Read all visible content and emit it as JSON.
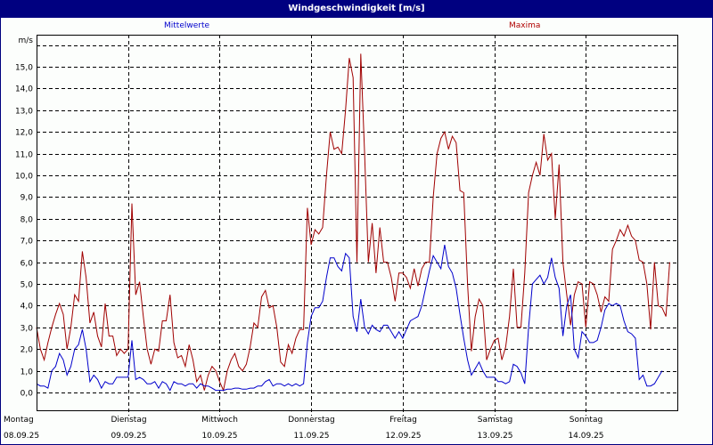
{
  "title": "Windgeschwindigkeit [m/s]",
  "legend": {
    "mean_label": "Mittelwerte",
    "max_label": "Maxima",
    "mean_color": "#0000cc",
    "max_color": "#a00000"
  },
  "colors": {
    "titlebar": "#000080",
    "background": "#fcfefc",
    "grid": "#000000"
  },
  "chart_data": {
    "type": "line",
    "title": "Windgeschwindigkeit [m/s]",
    "xlabel": "",
    "ylabel": "m/s",
    "ylim": [
      -0.8,
      15.9
    ],
    "yticks": [
      "0,0",
      "1,0",
      "2,0",
      "3,0",
      "4,0",
      "5,0",
      "6,0",
      "7,0",
      "8,0",
      "9,0",
      "10,0",
      "11,0",
      "12,0",
      "13,0",
      "14,0",
      "15,0"
    ],
    "y_unit_label": "m/s",
    "grid": true,
    "legend_position": "top",
    "categories": [
      {
        "day": "Montag",
        "date": "08.09.25"
      },
      {
        "day": "Dienstag",
        "date": "09.09.25"
      },
      {
        "day": "Mittwoch",
        "date": "10.09.25"
      },
      {
        "day": "Donnerstag",
        "date": "11.09.25"
      },
      {
        "day": "Freitag",
        "date": "12.09.25"
      },
      {
        "day": "Samstag",
        "date": "13.09.25"
      },
      {
        "day": "Sonntag",
        "date": "14.09.25"
      }
    ],
    "x_step_hours": 1,
    "series": [
      {
        "name": "Mittelwerte",
        "color": "#0000cc",
        "values": [
          0.4,
          0.3,
          0.3,
          0.2,
          1.0,
          1.2,
          1.8,
          1.5,
          0.8,
          1.2,
          2.0,
          2.2,
          2.9,
          2.0,
          0.5,
          0.8,
          0.6,
          0.2,
          0.5,
          0.4,
          0.4,
          0.7,
          0.7,
          0.7,
          0.7,
          2.4,
          0.6,
          0.7,
          0.6,
          0.4,
          0.4,
          0.5,
          0.2,
          0.5,
          0.4,
          0.1,
          0.5,
          0.4,
          0.4,
          0.3,
          0.4,
          0.4,
          0.2,
          0.4,
          0.3,
          0.3,
          0.2,
          0.1,
          0.1,
          0.1,
          0.15,
          0.15,
          0.2,
          0.2,
          0.15,
          0.15,
          0.2,
          0.2,
          0.3,
          0.3,
          0.5,
          0.6,
          0.3,
          0.4,
          0.4,
          0.3,
          0.4,
          0.3,
          0.4,
          0.3,
          0.4,
          2.3,
          3.5,
          3.9,
          3.9,
          4.2,
          5.3,
          6.2,
          6.2,
          5.8,
          5.6,
          6.4,
          6.2,
          3.5,
          2.8,
          4.3,
          3.0,
          2.7,
          3.1,
          2.9,
          2.8,
          3.1,
          3.1,
          2.8,
          2.5,
          2.8,
          2.5,
          2.9,
          3.3,
          3.4,
          3.5,
          4.0,
          4.8,
          5.6,
          6.3,
          6.0,
          5.7,
          6.8,
          5.8,
          5.5,
          4.8,
          3.6,
          2.5,
          1.5,
          0.8,
          1.1,
          1.4,
          1.0,
          0.7,
          0.7,
          0.7,
          0.5,
          0.5,
          0.4,
          0.5,
          1.3,
          1.2,
          0.9,
          0.4,
          3.0,
          5.0,
          5.2,
          5.4,
          5.0,
          5.3,
          6.2,
          5.3,
          4.8,
          2.6,
          4.0,
          4.5,
          2.0,
          1.6,
          2.8,
          2.6,
          2.3,
          2.3,
          2.4,
          3.0,
          3.8,
          4.1,
          4.0,
          4.1,
          4.0,
          3.3,
          2.8,
          2.7,
          2.5,
          0.6,
          0.8,
          0.3,
          0.3,
          0.4,
          0.7,
          1.0
        ]
      },
      {
        "name": "Maxima",
        "color": "#a00000",
        "values": [
          3.0,
          2.0,
          1.5,
          2.3,
          3.0,
          3.6,
          4.1,
          3.6,
          2.0,
          3.0,
          4.5,
          4.2,
          6.5,
          5.3,
          3.2,
          3.7,
          2.6,
          2.1,
          4.1,
          2.6,
          2.6,
          1.7,
          2.0,
          1.8,
          2.0,
          8.7,
          4.5,
          5.1,
          3.5,
          2.0,
          1.3,
          2.0,
          1.9,
          3.3,
          3.3,
          4.5,
          2.3,
          1.6,
          1.7,
          1.2,
          2.2,
          1.5,
          0.5,
          0.8,
          0.1,
          0.8,
          1.2,
          1.0,
          0.5,
          0.1,
          1.0,
          1.5,
          1.8,
          1.2,
          1.0,
          1.3,
          2.1,
          3.2,
          3.0,
          4.4,
          4.7,
          3.9,
          4.0,
          3.0,
          1.4,
          1.2,
          2.2,
          1.8,
          2.5,
          2.9,
          2.9,
          8.5,
          6.8,
          7.5,
          7.3,
          7.6,
          10.0,
          12.0,
          11.2,
          11.3,
          11.0,
          13.0,
          15.4,
          14.5,
          6.0,
          15.6,
          11.0,
          6.0,
          7.8,
          5.5,
          7.6,
          6.0,
          6.0,
          5.3,
          4.2,
          5.5,
          5.5,
          5.3,
          4.8,
          5.7,
          4.9,
          5.7,
          6.0,
          6.0,
          9.0,
          11.0,
          11.7,
          12.0,
          11.2,
          11.8,
          11.5,
          9.3,
          9.2,
          5.0,
          1.9,
          3.5,
          4.3,
          4.0,
          1.5,
          2.0,
          2.4,
          2.5,
          1.5,
          2.1,
          3.5,
          5.7,
          3.0,
          3.0,
          5.5,
          9.2,
          10.0,
          10.6,
          10.0,
          11.9,
          10.7,
          11.0,
          8.0,
          10.5,
          6.0,
          4.5,
          3.1,
          4.5,
          5.1,
          5.0,
          3.0,
          5.1,
          5.0,
          4.5,
          3.7,
          4.4,
          4.2,
          6.6,
          7.0,
          7.5,
          7.2,
          7.7,
          7.2,
          7.0,
          6.1,
          6.0,
          5.0,
          2.9,
          6.0,
          4.0,
          3.9,
          3.5,
          6.0
        ]
      }
    ]
  }
}
